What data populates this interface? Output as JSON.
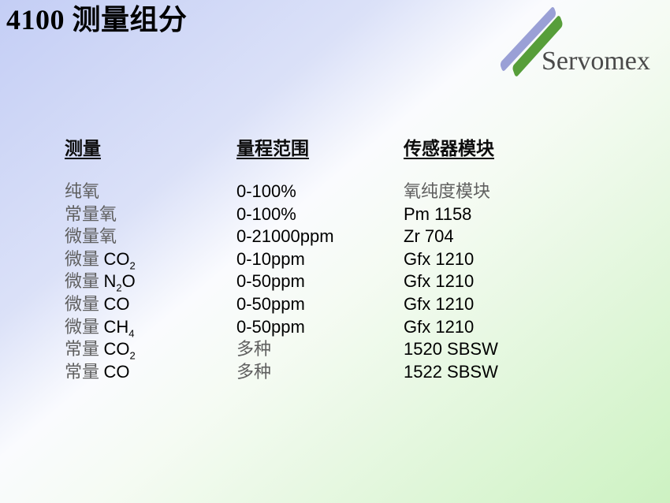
{
  "slide": {
    "title": "4100 测量组分",
    "logo": {
      "text": "Servomex",
      "purple_stripe_color": "#9aa0d6",
      "green_stripe_color": "#579e3a",
      "text_color": "#4a4a4a"
    },
    "background": {
      "top_left_color": "#c4cef5",
      "middle_color": "#fafbfe",
      "bottom_right_color": "#cdf2c2"
    },
    "table": {
      "headers": [
        "测量",
        "量程范围",
        "传感器模块"
      ],
      "rows": [
        {
          "cells": [
            [
              {
                "t": "纯氧",
                "s": "cn"
              }
            ],
            [
              {
                "t": "0-100%",
                "s": "lat"
              }
            ],
            [
              {
                "t": "氧纯度模块",
                "s": "cn"
              }
            ]
          ]
        },
        {
          "cells": [
            [
              {
                "t": "常量氧",
                "s": "cn"
              }
            ],
            [
              {
                "t": "0-100%",
                "s": "lat"
              }
            ],
            [
              {
                "t": "Pm 1158",
                "s": "lat"
              }
            ]
          ]
        },
        {
          "cells": [
            [
              {
                "t": "微量氧",
                "s": "cn"
              }
            ],
            [
              {
                "t": "0-21000ppm",
                "s": "lat"
              }
            ],
            [
              {
                "t": "Zr 704",
                "s": "lat"
              }
            ]
          ]
        },
        {
          "cells": [
            [
              {
                "t": "微量 ",
                "s": "cn"
              },
              {
                "t": "CO",
                "s": "lat"
              },
              {
                "t": "2",
                "s": "sub"
              }
            ],
            [
              {
                "t": "0-10ppm",
                "s": "lat"
              }
            ],
            [
              {
                "t": "Gfx 1210",
                "s": "lat"
              }
            ]
          ]
        },
        {
          "cells": [
            [
              {
                "t": "微量 ",
                "s": "cn"
              },
              {
                "t": "N",
                "s": "lat"
              },
              {
                "t": "2",
                "s": "sub"
              },
              {
                "t": "O",
                "s": "lat"
              }
            ],
            [
              {
                "t": "0-50ppm",
                "s": "lat"
              }
            ],
            [
              {
                "t": "Gfx 1210",
                "s": "lat"
              }
            ]
          ]
        },
        {
          "cells": [
            [
              {
                "t": "微量 ",
                "s": "cn"
              },
              {
                "t": "CO",
                "s": "lat"
              }
            ],
            [
              {
                "t": "0-50ppm",
                "s": "lat"
              }
            ],
            [
              {
                "t": "Gfx 1210",
                "s": "lat"
              }
            ]
          ]
        },
        {
          "cells": [
            [
              {
                "t": "微量 ",
                "s": "cn"
              },
              {
                "t": "CH",
                "s": "lat"
              },
              {
                "t": "4",
                "s": "sub"
              }
            ],
            [
              {
                "t": "0-50ppm",
                "s": "lat"
              }
            ],
            [
              {
                "t": "Gfx 1210",
                "s": "lat"
              }
            ]
          ]
        },
        {
          "cells": [
            [
              {
                "t": "常量 ",
                "s": "cn"
              },
              {
                "t": "CO",
                "s": "lat"
              },
              {
                "t": "2",
                "s": "sub"
              }
            ],
            [
              {
                "t": "多种",
                "s": "cn"
              }
            ],
            [
              {
                "t": "1520 SBSW",
                "s": "lat"
              }
            ]
          ]
        },
        {
          "cells": [
            [
              {
                "t": "常量 ",
                "s": "cn"
              },
              {
                "t": "CO",
                "s": "lat"
              }
            ],
            [
              {
                "t": "多种",
                "s": "cn"
              }
            ],
            [
              {
                "t": "1522 SBSW",
                "s": "lat"
              }
            ]
          ]
        }
      ]
    }
  }
}
